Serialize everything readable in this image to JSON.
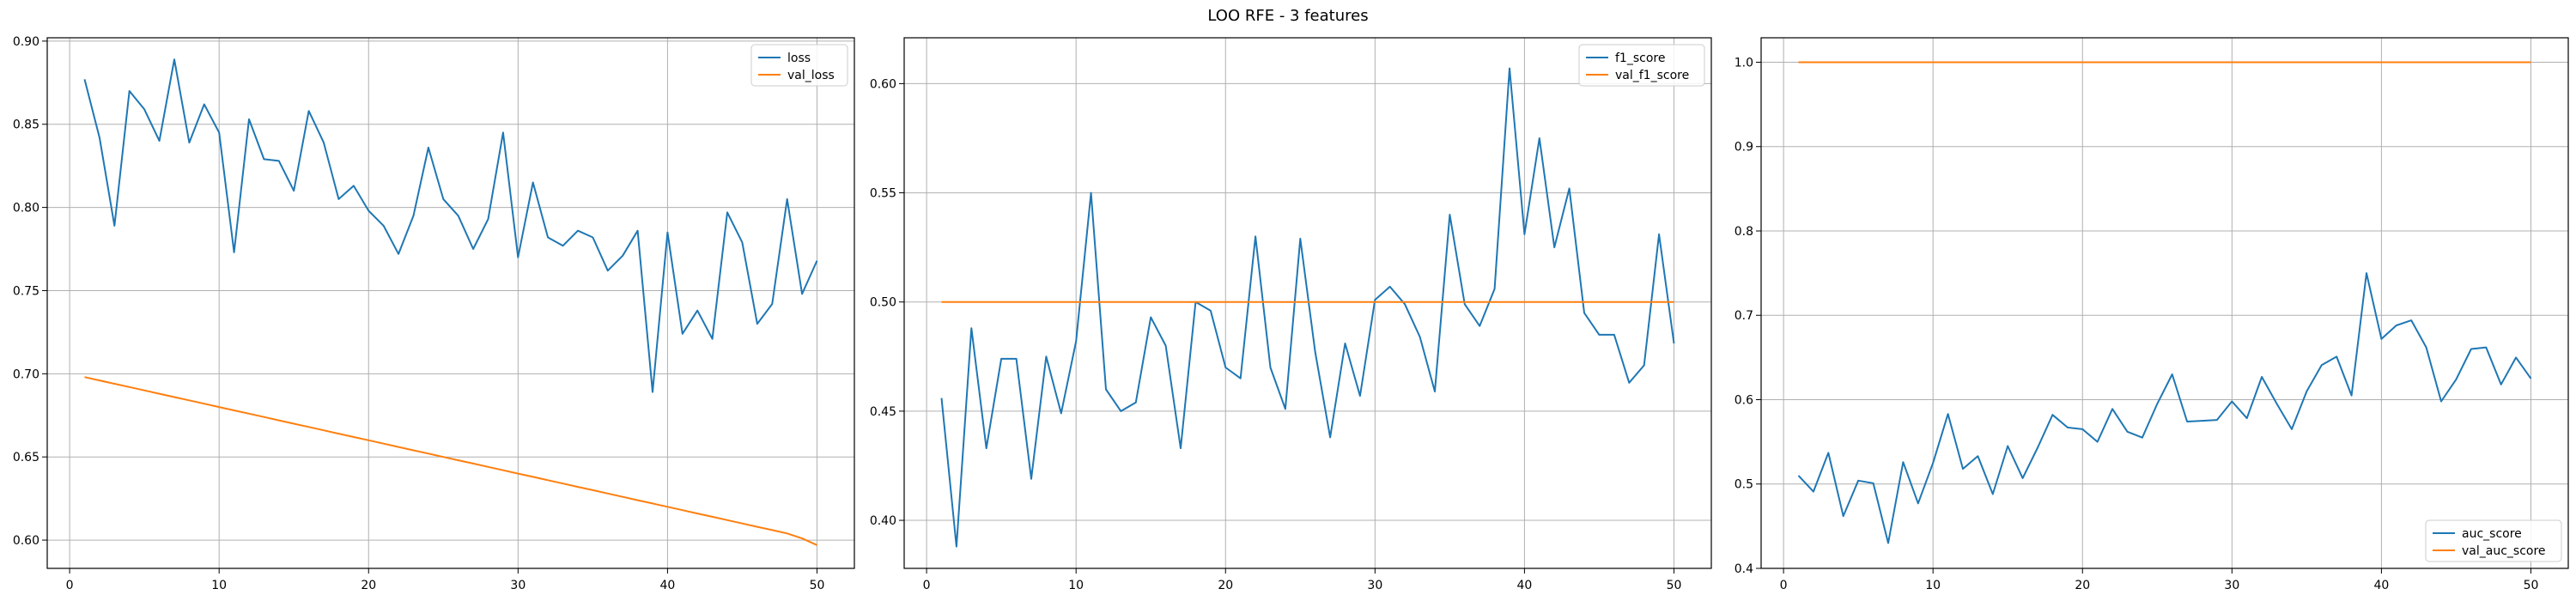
{
  "figure": {
    "title": "LOO RFE - 3 features"
  },
  "colors": {
    "train": "#1f77b4",
    "val": "#ff7f0e",
    "grid": "#b0b0b0",
    "axis": "#000000"
  },
  "chart_data": [
    {
      "type": "line",
      "title": "",
      "xlabel": "",
      "ylabel": "",
      "grid": true,
      "legend_position": "top-right",
      "xlim": [
        -1.5,
        52.5
      ],
      "ylim": [
        0.583,
        0.902
      ],
      "xticks": [
        0,
        10,
        20,
        30,
        40,
        50
      ],
      "yticks": [
        0.6,
        0.65,
        0.7,
        0.75,
        0.8,
        0.85,
        0.9
      ],
      "x": [
        1,
        2,
        3,
        4,
        5,
        6,
        7,
        8,
        9,
        10,
        11,
        12,
        13,
        14,
        15,
        16,
        17,
        18,
        19,
        20,
        21,
        22,
        23,
        24,
        25,
        26,
        27,
        28,
        29,
        30,
        31,
        32,
        33,
        34,
        35,
        36,
        37,
        38,
        39,
        40,
        41,
        42,
        43,
        44,
        45,
        46,
        47,
        48,
        49,
        50
      ],
      "series": [
        {
          "name": "loss",
          "color": "train",
          "values": [
            0.877,
            0.842,
            0.789,
            0.87,
            0.859,
            0.84,
            0.889,
            0.839,
            0.862,
            0.845,
            0.773,
            0.853,
            0.829,
            0.828,
            0.81,
            0.858,
            0.839,
            0.805,
            0.813,
            0.798,
            0.789,
            0.772,
            0.795,
            0.836,
            0.805,
            0.795,
            0.775,
            0.793,
            0.845,
            0.77,
            0.815,
            0.782,
            0.777,
            0.786,
            0.782,
            0.762,
            0.771,
            0.786,
            0.689,
            0.785,
            0.724,
            0.738,
            0.721,
            0.797,
            0.779,
            0.73,
            0.742,
            0.805,
            0.748,
            0.768
          ]
        },
        {
          "name": "val_loss",
          "color": "val",
          "values": [
            0.698,
            0.696,
            0.694,
            0.692,
            0.69,
            0.688,
            0.686,
            0.684,
            0.682,
            0.68,
            0.678,
            0.676,
            0.674,
            0.672,
            0.67,
            0.668,
            0.666,
            0.664,
            0.662,
            0.66,
            0.658,
            0.656,
            0.654,
            0.652,
            0.65,
            0.648,
            0.646,
            0.644,
            0.642,
            0.64,
            0.638,
            0.636,
            0.634,
            0.632,
            0.63,
            0.628,
            0.626,
            0.624,
            0.622,
            0.62,
            0.618,
            0.616,
            0.614,
            0.612,
            0.61,
            0.608,
            0.606,
            0.604,
            0.601,
            0.597
          ]
        }
      ]
    },
    {
      "type": "line",
      "title": "",
      "xlabel": "",
      "ylabel": "",
      "grid": true,
      "legend_position": "top-right",
      "xlim": [
        -1.5,
        52.5
      ],
      "ylim": [
        0.378,
        0.621
      ],
      "xticks": [
        0,
        10,
        20,
        30,
        40,
        50
      ],
      "yticks": [
        0.4,
        0.45,
        0.5,
        0.55,
        0.6
      ],
      "x": [
        1,
        2,
        3,
        4,
        5,
        6,
        7,
        8,
        9,
        10,
        11,
        12,
        13,
        14,
        15,
        16,
        17,
        18,
        19,
        20,
        21,
        22,
        23,
        24,
        25,
        26,
        27,
        28,
        29,
        30,
        31,
        32,
        33,
        34,
        35,
        36,
        37,
        38,
        39,
        40,
        41,
        42,
        43,
        44,
        45,
        46,
        47,
        48,
        49,
        50
      ],
      "series": [
        {
          "name": "f1_score",
          "color": "train",
          "values": [
            0.456,
            0.388,
            0.488,
            0.433,
            0.474,
            0.474,
            0.419,
            0.475,
            0.449,
            0.482,
            0.55,
            0.46,
            0.45,
            0.454,
            0.493,
            0.48,
            0.433,
            0.5,
            0.496,
            0.47,
            0.465,
            0.53,
            0.47,
            0.451,
            0.529,
            0.477,
            0.438,
            0.481,
            0.457,
            0.501,
            0.507,
            0.499,
            0.484,
            0.459,
            0.54,
            0.499,
            0.489,
            0.506,
            0.607,
            0.531,
            0.575,
            0.525,
            0.552,
            0.495,
            0.485,
            0.485,
            0.463,
            0.471,
            0.531,
            0.481
          ]
        },
        {
          "name": "val_f1_score",
          "color": "val",
          "values": [
            0.5,
            0.5,
            0.5,
            0.5,
            0.5,
            0.5,
            0.5,
            0.5,
            0.5,
            0.5,
            0.5,
            0.5,
            0.5,
            0.5,
            0.5,
            0.5,
            0.5,
            0.5,
            0.5,
            0.5,
            0.5,
            0.5,
            0.5,
            0.5,
            0.5,
            0.5,
            0.5,
            0.5,
            0.5,
            0.5,
            0.5,
            0.5,
            0.5,
            0.5,
            0.5,
            0.5,
            0.5,
            0.5,
            0.5,
            0.5,
            0.5,
            0.5,
            0.5,
            0.5,
            0.5,
            0.5,
            0.5,
            0.5,
            0.5,
            0.5
          ]
        }
      ]
    },
    {
      "type": "line",
      "title": "",
      "xlabel": "",
      "ylabel": "",
      "grid": true,
      "legend_position": "bottom-right",
      "xlim": [
        -1.5,
        52.5
      ],
      "ylim": [
        0.4,
        1.029
      ],
      "xticks": [
        0,
        10,
        20,
        30,
        40,
        50
      ],
      "yticks": [
        0.4,
        0.5,
        0.6,
        0.7,
        0.8,
        0.9,
        1.0
      ],
      "x": [
        1,
        2,
        3,
        4,
        5,
        6,
        7,
        8,
        9,
        10,
        11,
        12,
        13,
        14,
        15,
        16,
        17,
        18,
        19,
        20,
        21,
        22,
        23,
        24,
        25,
        26,
        27,
        28,
        29,
        30,
        31,
        32,
        33,
        34,
        35,
        36,
        37,
        38,
        39,
        40,
        41,
        42,
        43,
        44,
        45,
        46,
        47,
        48,
        49,
        50
      ],
      "series": [
        {
          "name": "auc_score",
          "color": "train",
          "values": [
            0.51,
            0.491,
            0.537,
            0.462,
            0.504,
            0.501,
            0.43,
            0.526,
            0.477,
            0.525,
            0.583,
            0.518,
            0.533,
            0.488,
            0.545,
            0.507,
            0.543,
            0.582,
            0.567,
            0.565,
            0.55,
            0.589,
            0.562,
            0.555,
            0.595,
            0.63,
            0.574,
            0.575,
            0.576,
            0.598,
            0.578,
            0.627,
            0.595,
            0.565,
            0.61,
            0.641,
            0.651,
            0.605,
            0.75,
            0.672,
            0.688,
            0.694,
            0.662,
            0.598,
            0.624,
            0.66,
            0.662,
            0.618,
            0.65,
            0.625
          ]
        },
        {
          "name": "val_auc_score",
          "color": "val",
          "values": [
            1.0,
            1.0,
            1.0,
            1.0,
            1.0,
            1.0,
            1.0,
            1.0,
            1.0,
            1.0,
            1.0,
            1.0,
            1.0,
            1.0,
            1.0,
            1.0,
            1.0,
            1.0,
            1.0,
            1.0,
            1.0,
            1.0,
            1.0,
            1.0,
            1.0,
            1.0,
            1.0,
            1.0,
            1.0,
            1.0,
            1.0,
            1.0,
            1.0,
            1.0,
            1.0,
            1.0,
            1.0,
            1.0,
            1.0,
            1.0,
            1.0,
            1.0,
            1.0,
            1.0,
            1.0,
            1.0,
            1.0,
            1.0,
            1.0,
            1.0
          ]
        }
      ]
    }
  ]
}
